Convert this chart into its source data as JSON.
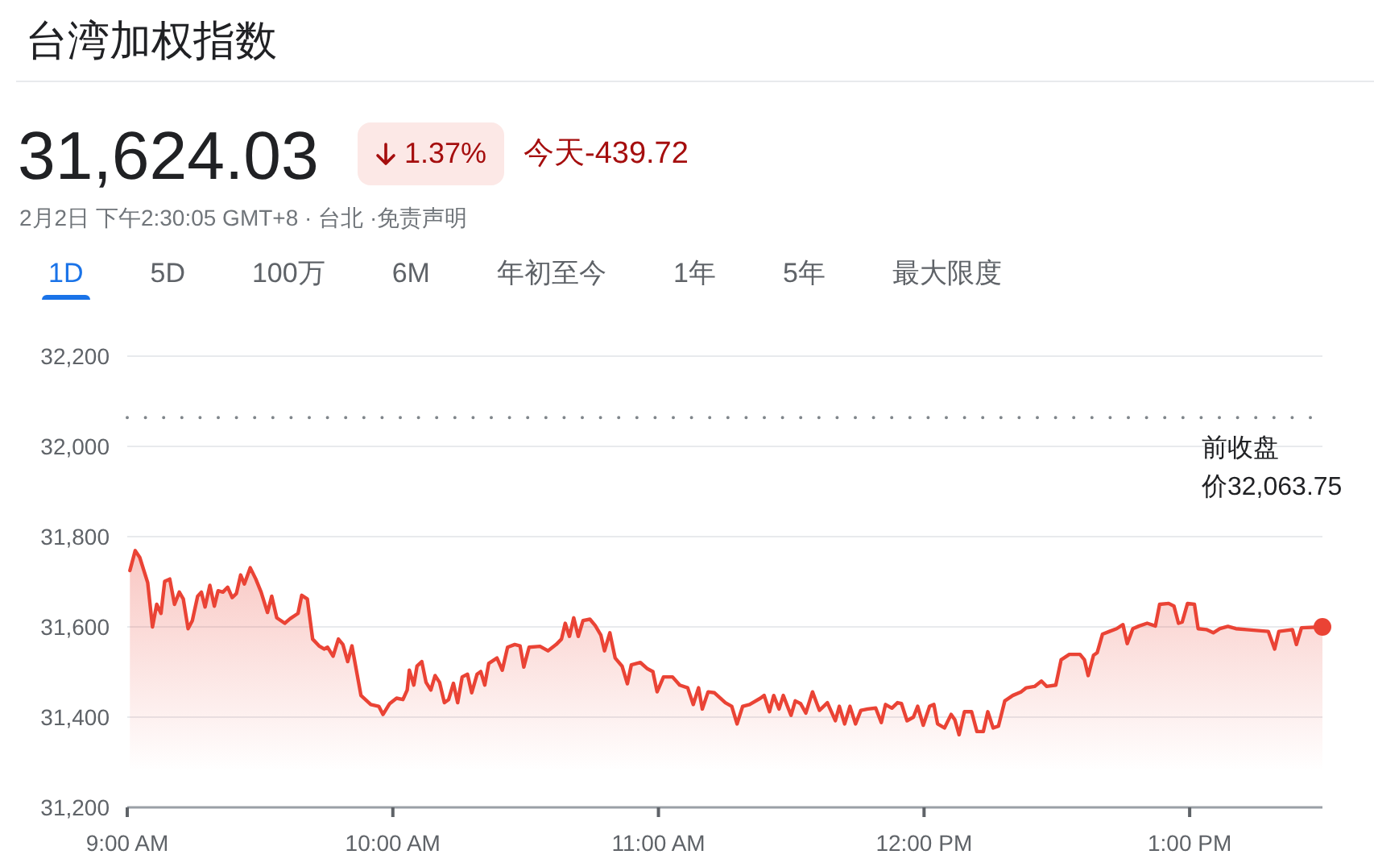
{
  "chart_data": {
    "type": "area",
    "title": "台湾加权指数",
    "annotations": [
      "31,624.03",
      "1.37%",
      "今天-439.72",
      "2月2日 下午2:30:05 GMT+8 · 台北 ·免责声明",
      "1D",
      "5D",
      "100万",
      "6M",
      "年初至今",
      "1年",
      "5年",
      "最大限度"
    ],
    "xlim": [
      9,
      13.5
    ],
    "xticks": [
      {
        "value": 9,
        "label": "9:00 AM"
      },
      {
        "value": 10,
        "label": "10:00 AM"
      },
      {
        "value": 11,
        "label": "11:00 AM"
      },
      {
        "value": 12,
        "label": "12:00 PM"
      },
      {
        "value": 13,
        "label": "1:00 PM"
      }
    ],
    "ylim": [
      31200,
      32200
    ],
    "yticks": [
      {
        "value": 31200,
        "label": "31,200"
      },
      {
        "value": 31400,
        "label": "31,400"
      },
      {
        "value": 31600,
        "label": "31,600"
      },
      {
        "value": 31800,
        "label": "31,800"
      },
      {
        "value": 32000,
        "label": "32,000"
      },
      {
        "value": 32200,
        "label": "32,200"
      }
    ],
    "grid": "y",
    "ref_lines": [
      {
        "axis": "y",
        "value": 32063.75,
        "label": "前收盘价32,063.75",
        "color": "#80868b",
        "line_style": "dotted"
      }
    ],
    "series": [
      {
        "color": "#ea4335",
        "x": [
          9.01,
          9.03,
          9.047,
          9.077,
          9.095,
          9.111,
          9.127,
          9.141,
          9.16,
          9.178,
          9.196,
          9.211,
          9.229,
          9.245,
          9.265,
          9.279,
          9.293,
          9.311,
          9.328,
          9.342,
          9.36,
          9.378,
          9.395,
          9.411,
          9.427,
          9.441,
          9.463,
          9.484,
          9.504,
          9.528,
          9.544,
          9.563,
          9.593,
          9.613,
          9.643,
          9.657,
          9.678,
          9.698,
          9.722,
          9.741,
          9.754,
          9.775,
          9.795,
          9.812,
          9.83,
          9.846,
          9.88,
          9.917,
          9.947,
          9.963,
          9.988,
          10.014,
          10.038,
          10.054,
          10.062,
          10.079,
          10.091,
          10.109,
          10.125,
          10.143,
          10.159,
          10.176,
          10.194,
          10.21,
          10.228,
          10.244,
          10.261,
          10.281,
          10.297,
          10.317,
          10.331,
          10.346,
          10.361,
          10.392,
          10.412,
          10.432,
          10.459,
          10.479,
          10.493,
          10.513,
          10.554,
          10.584,
          10.615,
          10.635,
          10.649,
          10.665,
          10.681,
          10.698,
          10.716,
          10.742,
          10.762,
          10.783,
          10.797,
          10.817,
          10.837,
          10.863,
          10.883,
          10.898,
          10.932,
          10.959,
          10.979,
          10.995,
          11.019,
          11.053,
          11.08,
          11.11,
          11.131,
          11.151,
          11.165,
          11.187,
          11.211,
          11.252,
          11.276,
          11.296,
          11.317,
          11.343,
          11.384,
          11.398,
          11.418,
          11.434,
          11.454,
          11.47,
          11.499,
          11.515,
          11.535,
          11.555,
          11.58,
          11.606,
          11.636,
          11.666,
          11.681,
          11.701,
          11.721,
          11.742,
          11.762,
          11.788,
          11.818,
          11.839,
          11.855,
          11.879,
          11.9,
          11.915,
          11.936,
          11.96,
          11.976,
          11.997,
          12.021,
          12.037,
          12.051,
          12.077,
          12.102,
          12.116,
          12.132,
          12.152,
          12.179,
          12.199,
          12.223,
          12.24,
          12.26,
          12.28,
          12.304,
          12.334,
          12.365,
          12.385,
          12.416,
          12.442,
          12.462,
          12.496,
          12.516,
          12.547,
          12.587,
          12.604,
          12.618,
          12.638,
          12.652,
          12.672,
          12.698,
          12.725,
          12.749,
          12.765,
          12.786,
          12.81,
          12.84,
          12.871,
          12.887,
          12.921,
          12.941,
          12.958,
          12.972,
          12.992,
          13.018,
          13.032,
          13.063,
          13.089,
          13.114,
          13.144,
          13.174,
          13.214,
          13.296,
          13.32,
          13.336,
          13.387,
          13.402,
          13.421,
          13.5
        ],
        "values": [
          31725,
          31769,
          31754,
          31698,
          31600,
          31650,
          31630,
          31701,
          31706,
          31650,
          31677,
          31662,
          31596,
          31614,
          31668,
          31677,
          31644,
          31692,
          31646,
          31680,
          31677,
          31688,
          31665,
          31674,
          31715,
          31695,
          31731,
          31706,
          31677,
          31632,
          31668,
          31620,
          31608,
          31618,
          31630,
          31670,
          31662,
          31573,
          31558,
          31551,
          31555,
          31535,
          31573,
          31561,
          31523,
          31558,
          31448,
          31428,
          31424,
          31406,
          31430,
          31442,
          31439,
          31460,
          31504,
          31471,
          31513,
          31523,
          31477,
          31460,
          31492,
          31477,
          31432,
          31439,
          31475,
          31432,
          31489,
          31495,
          31454,
          31495,
          31501,
          31471,
          31519,
          31531,
          31504,
          31555,
          31561,
          31558,
          31511,
          31555,
          31557,
          31547,
          31561,
          31573,
          31608,
          31579,
          31620,
          31579,
          31614,
          31617,
          31603,
          31582,
          31547,
          31587,
          31531,
          31513,
          31474,
          31516,
          31521,
          31507,
          31501,
          31456,
          31489,
          31489,
          31471,
          31465,
          31428,
          31465,
          31418,
          31456,
          31454,
          31432,
          31424,
          31385,
          31424,
          31428,
          31442,
          31448,
          31412,
          31448,
          31418,
          31448,
          31404,
          31436,
          31430,
          31409,
          31456,
          31415,
          31432,
          31392,
          31424,
          31385,
          31424,
          31385,
          31415,
          31418,
          31420,
          31388,
          31428,
          31420,
          31432,
          31430,
          31392,
          31400,
          31424,
          31382,
          31424,
          31428,
          31385,
          31376,
          31406,
          31394,
          31361,
          31412,
          31412,
          31368,
          31368,
          31412,
          31376,
          31380,
          31436,
          31448,
          31456,
          31465,
          31468,
          31480,
          31468,
          31471,
          31527,
          31539,
          31539,
          31527,
          31492,
          31537,
          31543,
          31584,
          31590,
          31596,
          31605,
          31563,
          31596,
          31602,
          31608,
          31602,
          31650,
          31652,
          31646,
          31608,
          31611,
          31652,
          31650,
          31596,
          31594,
          31587,
          31596,
          31601,
          31596,
          31594,
          31590,
          31551,
          31590,
          31594,
          31561,
          31598,
          31600
        ]
      },
      {
        "type": "scatter",
        "color": "#ea4335",
        "marker": "circle",
        "x": [
          13.5
        ],
        "values": [
          31600
        ]
      }
    ]
  }
}
